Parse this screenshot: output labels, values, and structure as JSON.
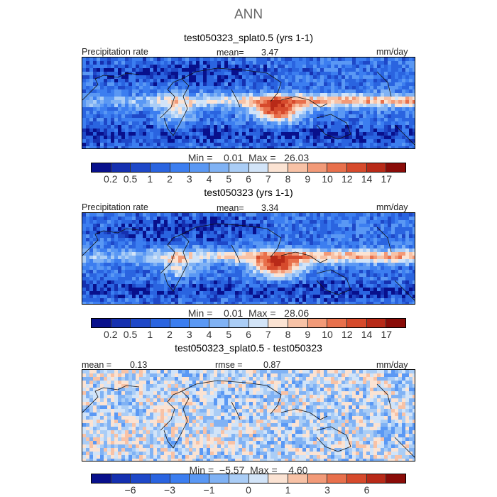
{
  "figure": {
    "title": "ANN"
  },
  "panels": [
    {
      "title": "test050323_splat0.5 (yrs 1-1)",
      "left_label": "Precipitation rate",
      "mean_label": "mean=",
      "mean_value": "3.47",
      "units": "mm/day",
      "min_label": "Min =",
      "min_value": "0.01",
      "max_label": "Max =",
      "max_value": "26.03"
    },
    {
      "title": "test050323 (yrs 1-1)",
      "left_label": "Precipitation rate",
      "mean_label": "mean=",
      "mean_value": "3.34",
      "units": "mm/day",
      "min_label": "Min =",
      "min_value": "0.01",
      "max_label": "Max =",
      "max_value": "28.06"
    },
    {
      "title": "test050323_splat0.5 - test050323",
      "mean_label": "mean =",
      "mean_value": "0.13",
      "rmse_label": "rmse =",
      "rmse_value": "0.87",
      "units": "mm/day",
      "min_label": "Min =",
      "min_value": "−5.57",
      "max_label": "Max =",
      "max_value": "4.60"
    }
  ],
  "chart_data": [
    {
      "type": "heatmap",
      "title": "test050323_splat0.5 (yrs 1-1)",
      "variable": "Precipitation rate",
      "units": "mm/day",
      "mean": 3.47,
      "min": 0.01,
      "max": 26.03,
      "colorbar_levels": [
        0.2,
        0.5,
        1,
        2,
        3,
        4,
        5,
        6,
        7,
        8,
        9,
        10,
        12,
        14,
        17
      ],
      "colorbar_labels": [
        "0.2",
        "0.5",
        "1",
        "2",
        "3",
        "4",
        "5",
        "6",
        "7",
        "8",
        "9",
        "10",
        "12",
        "14",
        "17"
      ]
    },
    {
      "type": "heatmap",
      "title": "test050323 (yrs 1-1)",
      "variable": "Precipitation rate",
      "units": "mm/day",
      "mean": 3.34,
      "min": 0.01,
      "max": 28.06,
      "colorbar_levels": [
        0.2,
        0.5,
        1,
        2,
        3,
        4,
        5,
        6,
        7,
        8,
        9,
        10,
        12,
        14,
        17
      ],
      "colorbar_labels": [
        "0.2",
        "0.5",
        "1",
        "2",
        "3",
        "4",
        "5",
        "6",
        "7",
        "8",
        "9",
        "10",
        "12",
        "14",
        "17"
      ]
    },
    {
      "type": "heatmap",
      "title": "test050323_splat0.5 - test050323",
      "units": "mm/day",
      "mean": 0.13,
      "rmse": 0.87,
      "min": -5.57,
      "max": 4.6,
      "colorbar_levels": [
        -8,
        -6,
        -4,
        -3,
        -2,
        -1,
        -0.5,
        0,
        0.5,
        1,
        2,
        3,
        4,
        6,
        8
      ],
      "colorbar_labels": [
        "−6",
        "−3",
        "−1",
        "0",
        "1",
        "3",
        "6"
      ]
    }
  ],
  "colors": {
    "precip_scale": [
      "#08108c",
      "#1530b0",
      "#1e48c8",
      "#2a64e0",
      "#3c7ef0",
      "#5a98f4",
      "#80b2f4",
      "#aacdf6",
      "#d2e4f8",
      "#fbe3d3",
      "#f8c2a6",
      "#f29a78",
      "#e8704c",
      "#d64a2c",
      "#b82a18",
      "#8a0c08"
    ],
    "diff_scale": [
      "#08108c",
      "#1530b0",
      "#1e48c8",
      "#2a64e0",
      "#3c7ef0",
      "#5a98f4",
      "#80b2f4",
      "#aacdf6",
      "#d2e4f8",
      "#fbe3d3",
      "#f8c2a6",
      "#f29a78",
      "#e8704c",
      "#d64a2c",
      "#b82a18",
      "#8a0c08"
    ]
  }
}
